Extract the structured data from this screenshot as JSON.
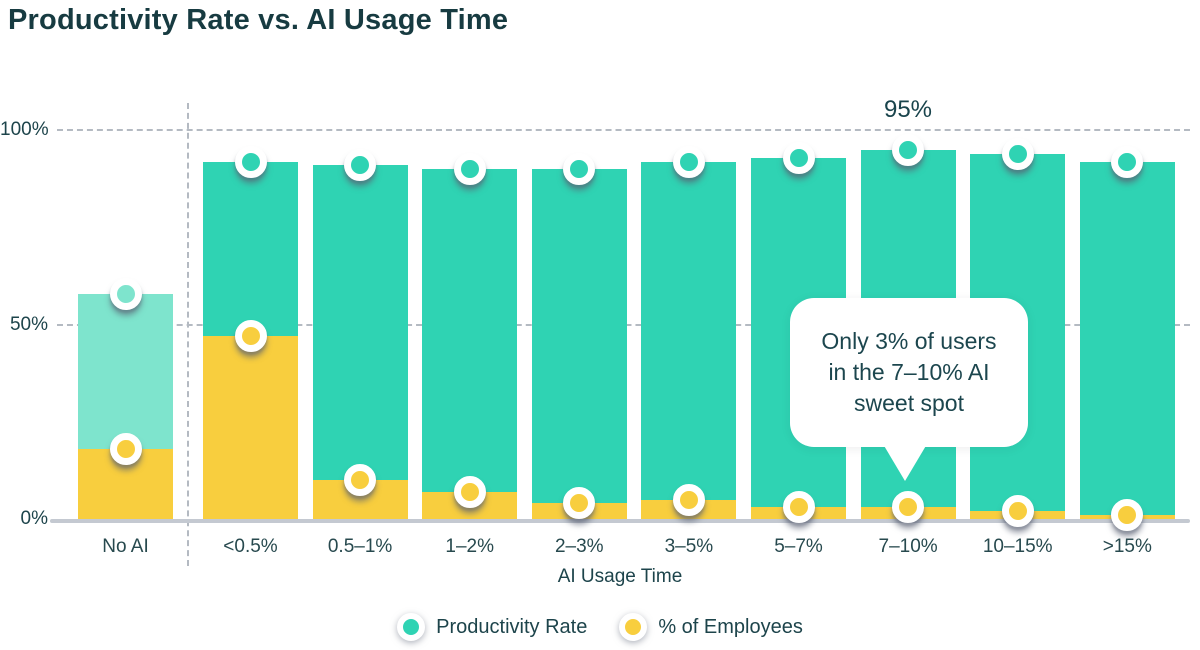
{
  "title": "Productivity Rate vs. AI Usage Time",
  "chart_data": {
    "type": "bar",
    "categories": [
      "No AI",
      "<0.5%",
      "0.5–1%",
      "1–2%",
      "2–3%",
      "3–5%",
      "5–7%",
      "7–10%",
      "10–15%",
      ">15%"
    ],
    "series": [
      {
        "name": "Productivity Rate",
        "values": [
          58,
          92,
          91,
          90,
          90,
          92,
          93,
          95,
          94,
          92
        ]
      },
      {
        "name": "% of Employees",
        "values": [
          18,
          47,
          10,
          7,
          4,
          5,
          3,
          3,
          2,
          1
        ]
      }
    ],
    "xlabel": "AI Usage Time",
    "ylabel": "",
    "ylim": [
      0,
      100
    ],
    "ytick_labels": [
      "100%",
      "50%",
      "0%"
    ],
    "grid": "dashed horizontal at 50% and 100%, dashed vertical separator after No AI",
    "legend_position": "bottom center",
    "muted_category_index": 0,
    "annotations": {
      "bar_label": {
        "text": "95%",
        "category": "7–10%"
      },
      "callout": {
        "lines": [
          "Only 3% of users",
          "in the 7–10% AI",
          "sweet spot"
        ],
        "category": "7–10%"
      }
    }
  },
  "legend": [
    {
      "label": "Productivity Rate",
      "color": "#2fd3b3"
    },
    {
      "label": "% of Employees",
      "color": "#f8ce3e"
    }
  ],
  "colors": {
    "productivity": "#2fd3b3",
    "productivity_muted": "#7ee4cd",
    "employees": "#f8ce3e",
    "text_dark": "#1b4249",
    "grid": "#b4bac2",
    "axis": "#c4c9d1"
  }
}
